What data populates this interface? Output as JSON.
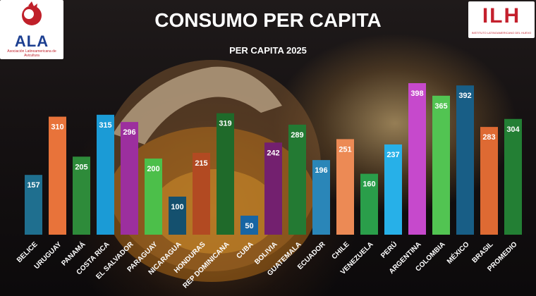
{
  "header": {
    "title": "CONSUMO PER CAPITA",
    "subtitle": "PER CAPITA 2025"
  },
  "logos": {
    "left": {
      "text": "ALA",
      "subtext": "Asociación Latinoamericana de Avicultura"
    },
    "right": {
      "text": "ILH",
      "subtext": "INSTITUTO LATINOAMERICANO DEL HUEVO"
    }
  },
  "chart_data": {
    "type": "bar",
    "title": "CONSUMO PER CAPITA",
    "subtitle": "PER CAPITA 2025",
    "xlabel": "",
    "ylabel": "",
    "grid": false,
    "legend": "none",
    "categories": [
      "BELICE",
      "URUGUAY",
      "PANAMÁ",
      "COSTA RICA",
      "EL SALVADOR",
      "PARAGUAY",
      "NICARAGUA",
      "HONDURAS",
      "REP DOMINICANA",
      "CUBA",
      "BOLIVIA",
      "GUATEMALA",
      "ECUADOR",
      "CHILE",
      "VENEZUELA",
      "PERÚ",
      "ARGENTINA",
      "COLOMBIA",
      "MÉXICO",
      "BRASIL",
      "PROMEDIO"
    ],
    "values": [
      157,
      310,
      205,
      315,
      296,
      200,
      100,
      215,
      319,
      50,
      242,
      289,
      196,
      251,
      160,
      237,
      398,
      365,
      392,
      283,
      304
    ],
    "colors": [
      "#1f6f8f",
      "#e8733a",
      "#2e8b3a",
      "#1b9bd6",
      "#9c2f9e",
      "#4cbf4a",
      "#14506e",
      "#b24a22",
      "#1f6a2a",
      "#1765a3",
      "#73206f",
      "#237a33",
      "#2a86b8",
      "#ec8a55",
      "#2a9e4a",
      "#27b0e8",
      "#c649cc",
      "#52c452",
      "#185e86",
      "#de6a33",
      "#237f34"
    ]
  }
}
